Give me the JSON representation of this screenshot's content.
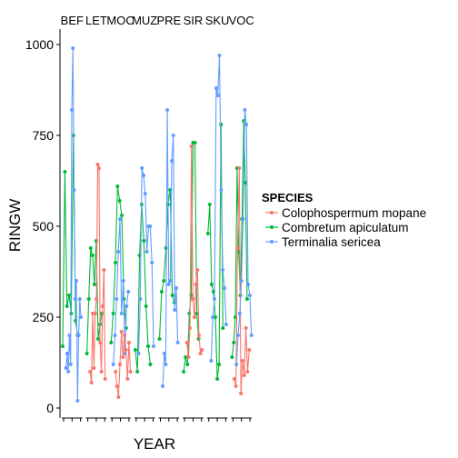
{
  "chart_data": {
    "type": "line",
    "xlabel": "YEAR",
    "ylabel": "RINGW",
    "ylim": [
      0,
      1000
    ],
    "yticks": [
      0,
      250,
      500,
      750,
      1000
    ],
    "grid": false,
    "legend_position": "right",
    "legend": {
      "title": "SPECIES",
      "entries": [
        {
          "name": "Colophospermum mopane",
          "color": "#F8766D"
        },
        {
          "name": "Combretum apiculatum",
          "color": "#00BA38"
        },
        {
          "name": "Terminalia sericea",
          "color": "#619CFF"
        }
      ]
    },
    "panels": [
      {
        "label": "BEF",
        "series": [
          {
            "name": "Combretum apiculatum",
            "values": [
              170,
              650,
              280,
              310,
              260,
              750,
              240,
              200
            ]
          },
          {
            "name": "Terminalia sericea",
            "values": [
              110,
              150,
              100,
              200,
              120,
              820,
              990,
              600,
              300,
              350,
              20,
              200,
              300,
              250
            ]
          }
        ]
      },
      {
        "label": "LET",
        "series": [
          {
            "name": "Combretum apiculatum",
            "values": [
              150,
              300,
              440,
              420,
              340,
              460,
              190,
              230,
              260
            ]
          },
          {
            "name": "Colophospermum mopane",
            "values": [
              100,
              70,
              260,
              110,
              260,
              300,
              670,
              660,
              180,
              100,
              280,
              380,
              80
            ]
          }
        ]
      },
      {
        "label": "MOC",
        "series": [
          {
            "name": "Combretum apiculatum",
            "values": [
              180,
              260,
              400,
              610,
              570,
              530,
              300,
              220
            ]
          },
          {
            "name": "Terminalia sericea",
            "values": [
              120,
              200,
              300,
              430,
              520,
              260,
              350,
              150,
              280,
              320
            ]
          },
          {
            "name": "Colophospermum mopane",
            "values": [
              100,
              60,
              30,
              120,
              210,
              140,
              200,
              160,
              80,
              180,
              100
            ]
          }
        ]
      },
      {
        "label": "MUZ",
        "series": [
          {
            "name": "Combretum apiculatum",
            "values": [
              160,
              100,
              420,
              560,
              460,
              280,
              170,
              120
            ]
          },
          {
            "name": "Terminalia sericea",
            "values": [
              150,
              300,
              660,
              640,
              590,
              430,
              500,
              500,
              400,
              170
            ]
          }
        ]
      },
      {
        "label": "PRE",
        "series": [
          {
            "name": "Combretum apiculatum",
            "values": [
              190,
              320,
              350,
              440,
              560,
              600,
              310,
              290
            ]
          },
          {
            "name": "Terminalia sericea",
            "values": [
              60,
              150,
              120,
              820,
              340,
              350,
              680,
              750,
              270,
              330,
              180
            ]
          }
        ]
      },
      {
        "label": "SIR",
        "series": [
          {
            "name": "Combretum apiculatum",
            "values": [
              100,
              140,
              120,
              260,
              310,
              730,
              730,
              260,
              190
            ]
          },
          {
            "name": "Colophospermum mopane",
            "values": [
              180,
              140,
              220,
              720,
              300,
              250,
              340,
              380,
              200,
              150,
              160
            ]
          }
        ]
      },
      {
        "label": "SKU",
        "series": [
          {
            "name": "Combretum apiculatum",
            "values": [
              480,
              560,
              340,
              320,
              250,
              80,
              120,
              780,
              220
            ]
          },
          {
            "name": "Terminalia sericea",
            "values": [
              130,
              250,
              300,
              880,
              860,
              970,
              600,
              380,
              330,
              230
            ]
          }
        ]
      },
      {
        "label": "VOC",
        "series": [
          {
            "name": "Combretum apiculatum",
            "values": [
              140,
              180,
              250,
              660,
              430,
              310,
              520,
              790,
              620,
              300
            ]
          },
          {
            "name": "Colophospermum mopane",
            "values": [
              80,
              60,
              440,
              660,
              40,
              130,
              90,
              220,
              100,
              160
            ]
          },
          {
            "name": "Terminalia sericea",
            "values": [
              120,
              200,
              260,
              350,
              520,
              820,
              780,
              340,
              310,
              200
            ]
          }
        ]
      }
    ]
  }
}
